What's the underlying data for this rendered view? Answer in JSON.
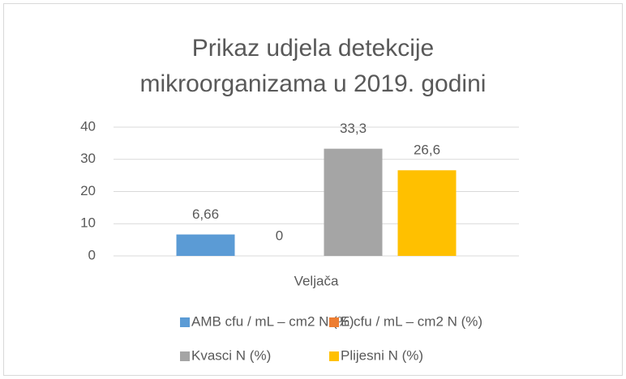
{
  "chart_data": {
    "type": "bar",
    "title": "Prikaz udjela detekcije mikroorganizama u 2019. godini",
    "categories": [
      "Veljača"
    ],
    "series": [
      {
        "name": "AMB cfu / mL – cm2 N (%)",
        "color": "#5b9bd5",
        "values": [
          6.66
        ],
        "value_labels": [
          "6,66"
        ]
      },
      {
        "name": "E cfu / mL – cm2 N (%)",
        "color": "#ed7d31",
        "values": [
          0
        ],
        "value_labels": [
          "0"
        ]
      },
      {
        "name": "Kvasci N (%)",
        "color": "#a5a5a5",
        "values": [
          33.3
        ],
        "value_labels": [
          "33,3"
        ]
      },
      {
        "name": "Plijesni N (%)",
        "color": "#ffc000",
        "values": [
          26.6
        ],
        "value_labels": [
          "26,6"
        ]
      }
    ],
    "ylim": [
      0,
      40
    ],
    "yticks": [
      0,
      10,
      20,
      30,
      40
    ],
    "grid": true,
    "legend": "bottom"
  }
}
